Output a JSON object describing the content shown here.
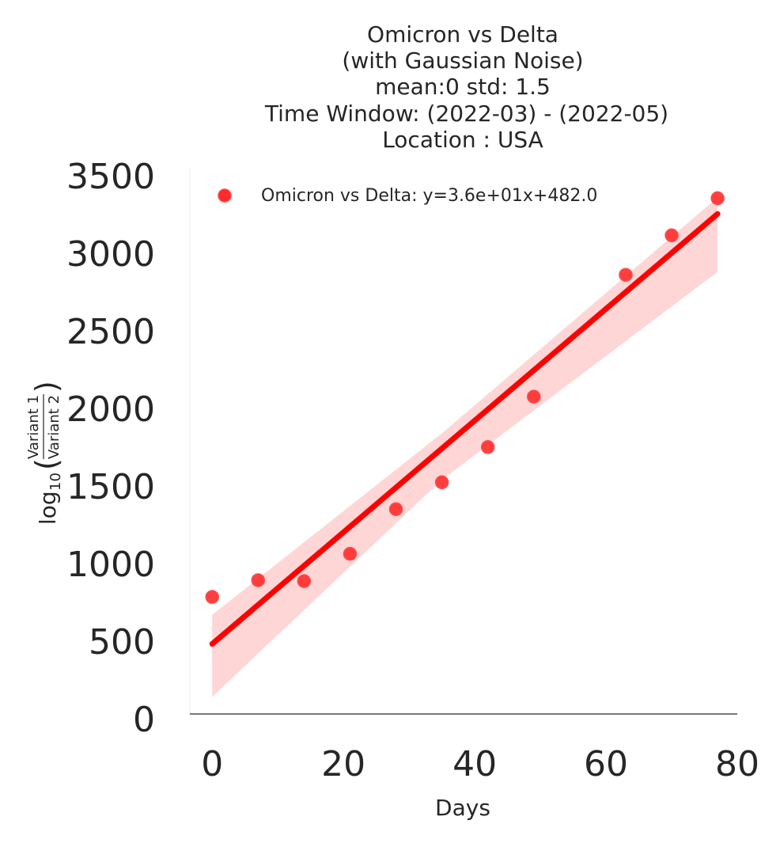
{
  "chart_data": {
    "type": "scatter",
    "title_lines": [
      "Omicron vs Delta",
      "(with Gaussian Noise)",
      "mean:0 std: 1.5",
      "Time Window: (2022-03) - (2022-05)",
      "Location : USA"
    ],
    "xlabel": "Days",
    "ylabel": {
      "prefix": "log",
      "subscript": "10",
      "numerator": "Variant 1",
      "denominator": "Variant 2"
    },
    "xlim": [
      -3.4,
      80
    ],
    "ylim": [
      0,
      3500
    ],
    "x_ticks": [
      0,
      20,
      40,
      60,
      80
    ],
    "y_ticks": [
      0,
      500,
      1000,
      1500,
      2000,
      2500,
      3000,
      3500
    ],
    "grid": false,
    "legend_position": "top-left",
    "series": [
      {
        "name": "Omicron vs Delta: y=3.6e+01x+482.0",
        "x": [
          0,
          7,
          14,
          21,
          28,
          35,
          42,
          49,
          63,
          70,
          77
        ],
        "y": [
          785,
          893,
          887,
          1063,
          1351,
          1524,
          1751,
          2076,
          2861,
          3116,
          3355
        ]
      }
    ],
    "fit": {
      "slope": 36,
      "intercept": 482,
      "x_range": [
        0,
        77
      ],
      "ci_upper": [
        {
          "x": 0,
          "y": 670
        },
        {
          "x": 35,
          "y": 1840
        },
        {
          "x": 77,
          "y": 3360
        }
      ],
      "ci_lower": [
        {
          "x": 0,
          "y": 140
        },
        {
          "x": 35,
          "y": 1540
        },
        {
          "x": 77,
          "y": 2880
        }
      ]
    },
    "colors": {
      "points": "#ff2a2a",
      "line": "#ff0000",
      "band": "#ffd6d6",
      "axis": "#262626",
      "text": "#262626"
    }
  }
}
